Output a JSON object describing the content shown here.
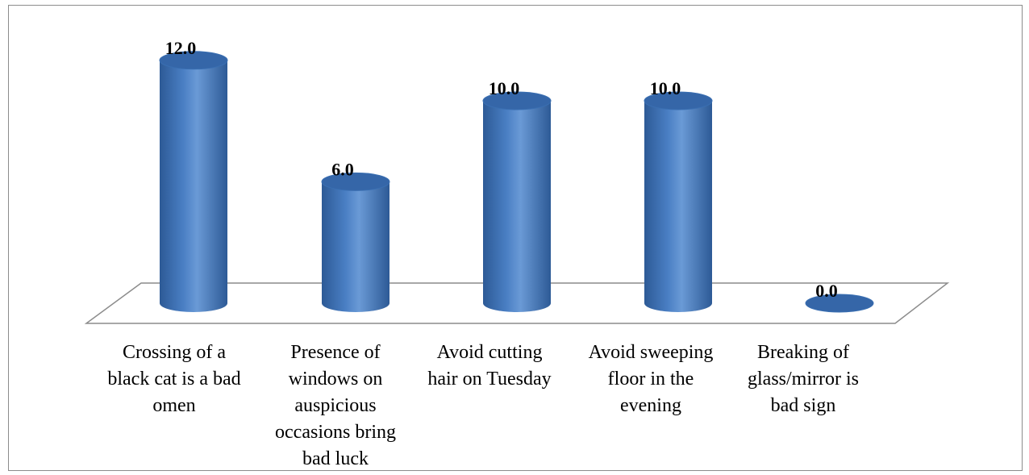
{
  "chart_data": {
    "type": "bar",
    "style": "3d-cylinder",
    "title": "",
    "xlabel": "",
    "ylabel": "",
    "categories": [
      "Crossing of a black cat is a bad omen",
      "Presence of windows on auspicious occasions bring bad luck",
      "Avoid cutting hair on Tuesday",
      "Avoid sweeping floor in the evening",
      "Breaking of glass/mirror is bad sign"
    ],
    "category_lines": [
      [
        "Crossing of a",
        "black cat is a bad",
        "omen"
      ],
      [
        "Presence of",
        "windows on",
        "auspicious",
        "occasions bring",
        "bad luck"
      ],
      [
        "Avoid cutting",
        "hair on Tuesday"
      ],
      [
        "Avoid sweeping",
        "floor in the",
        "evening"
      ],
      [
        "Breaking of",
        "glass/mirror is",
        "bad sign"
      ]
    ],
    "values": [
      12.0,
      6.0,
      10.0,
      10.0,
      0.0
    ],
    "value_labels": [
      "12.0",
      "6.0",
      "10.0",
      "10.0",
      "0.0"
    ],
    "ylim": [
      0,
      12
    ],
    "grid": false,
    "legend": "none",
    "colors": {
      "bar": "#4a7fc4",
      "bar_dark": "#2d5a96",
      "bar_top": "#3566a8",
      "floor_line": "#8c8c8c"
    }
  }
}
